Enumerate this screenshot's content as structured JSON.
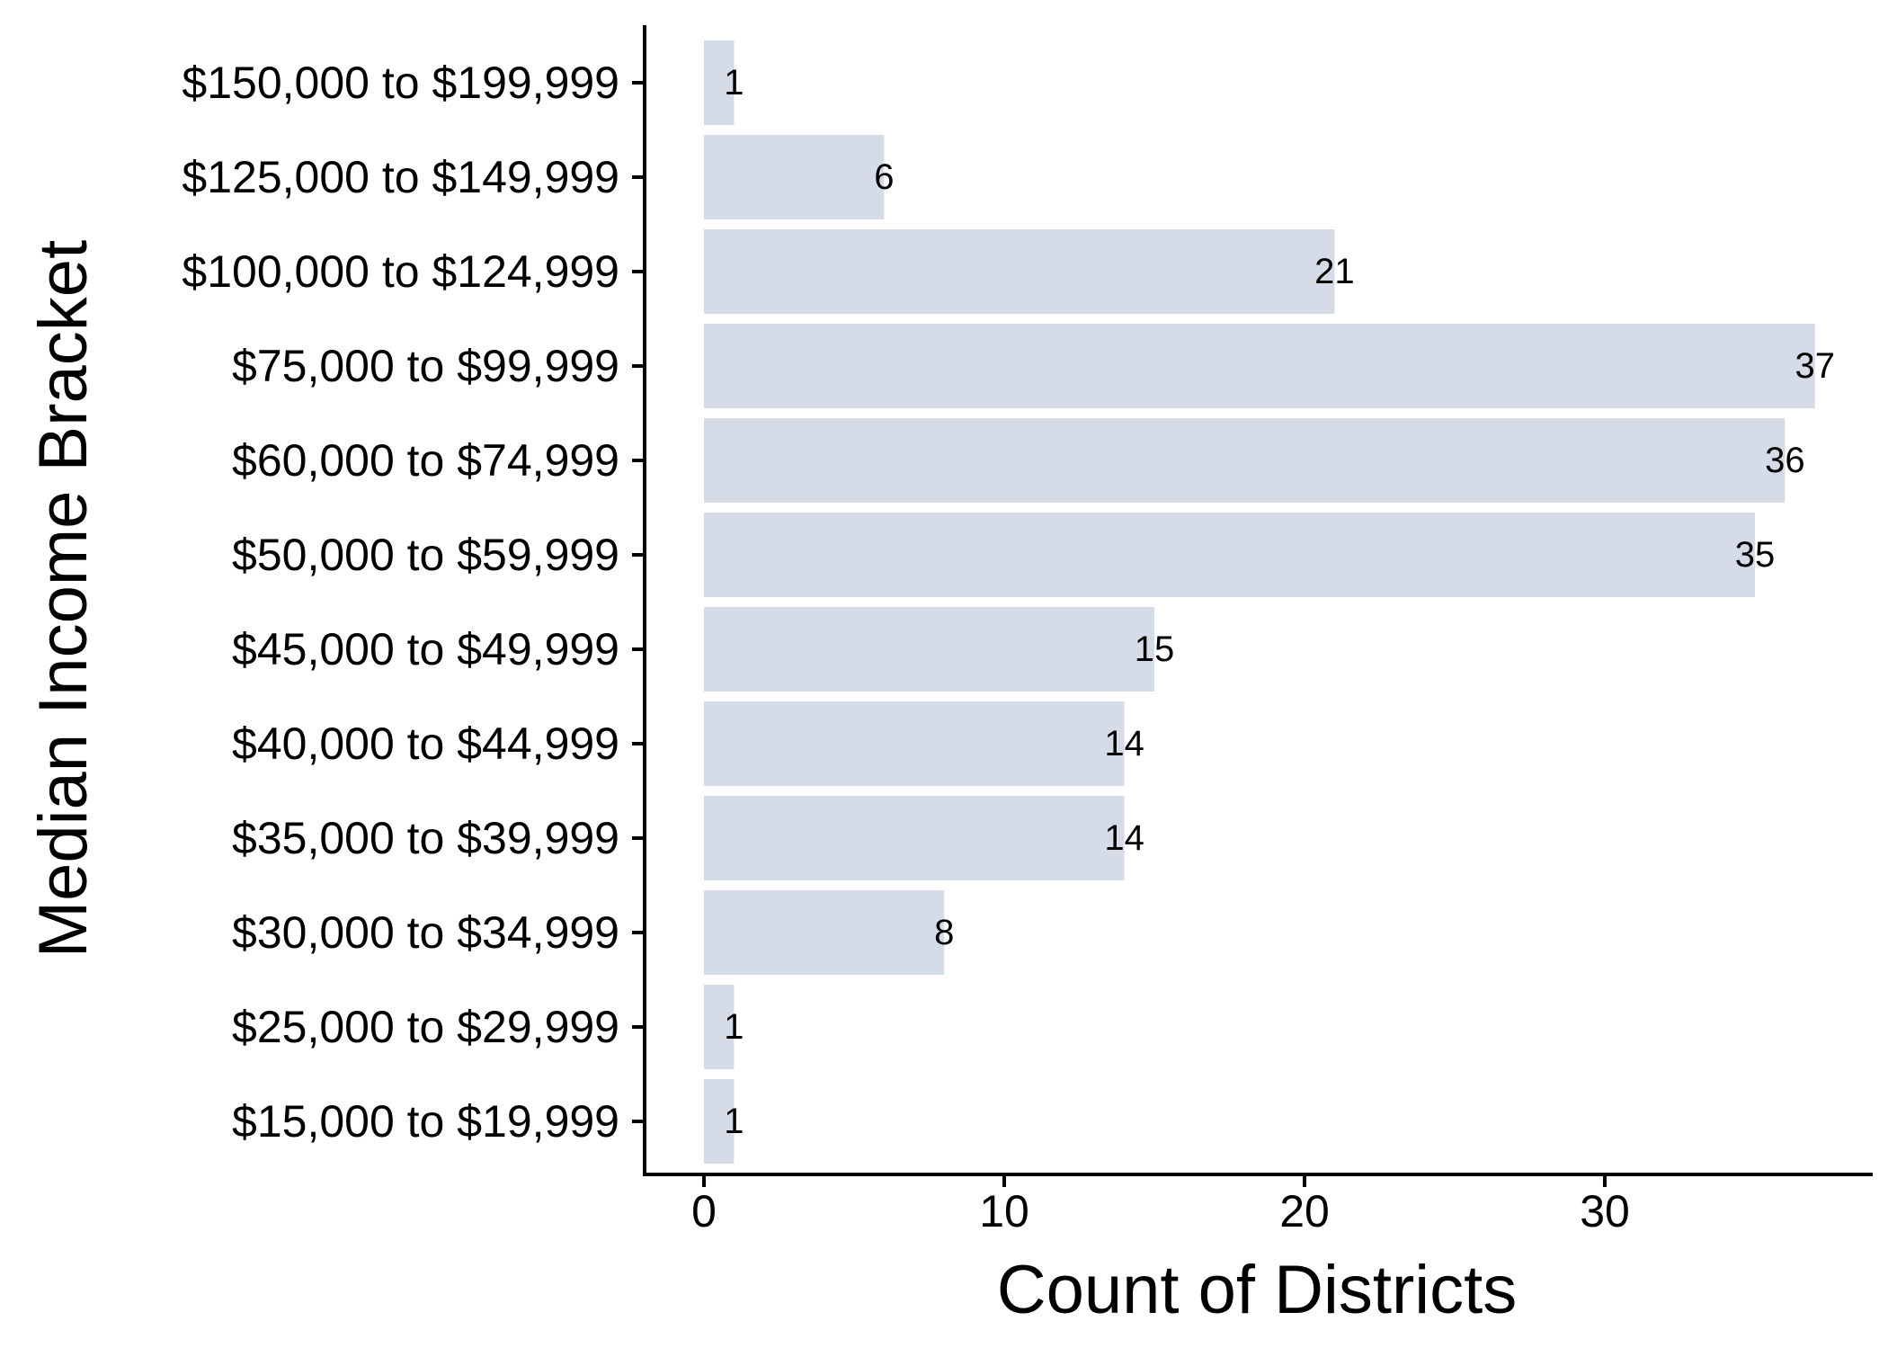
{
  "chart_data": {
    "type": "bar",
    "orientation": "horizontal",
    "xlabel": "Count of Districts",
    "ylabel": "Median Income Bracket",
    "xlim": [
      -1.9,
      38.9
    ],
    "xticks": [
      0,
      10,
      20,
      30
    ],
    "grid": false,
    "bar_color": "#d6dce7",
    "categories": [
      "$150,000 to $199,999",
      "$125,000 to $149,999",
      "$100,000 to $124,999",
      "$75,000 to $99,999",
      "$60,000 to $74,999",
      "$50,000 to $59,999",
      "$45,000 to $49,999",
      "$40,000 to $44,999",
      "$35,000 to $39,999",
      "$30,000 to $34,999",
      "$25,000 to $29,999",
      "$15,000 to $19,999"
    ],
    "values": [
      1,
      6,
      21,
      37,
      36,
      35,
      15,
      14,
      14,
      8,
      1,
      1
    ]
  }
}
